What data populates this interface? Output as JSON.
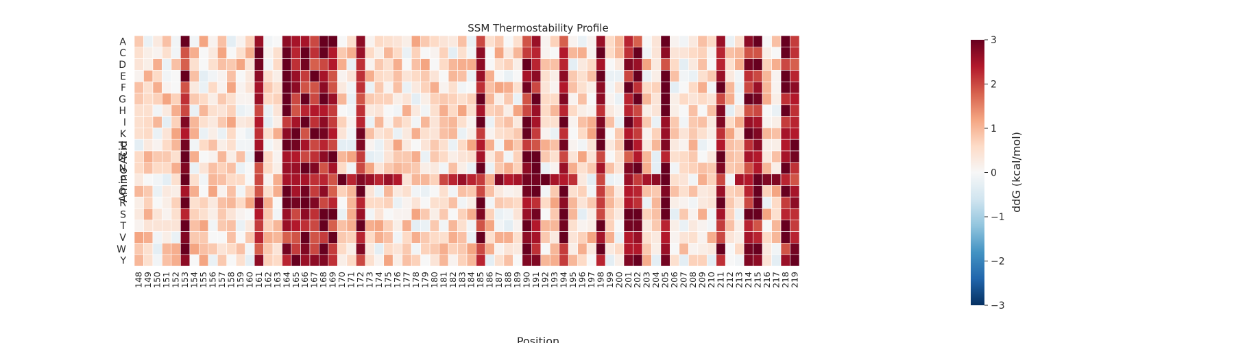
{
  "chart_data": {
    "type": "heatmap",
    "title": "SSM Thermostability Profile",
    "xlabel": "Position",
    "ylabel": "Amino Acid",
    "x_start": 148,
    "x_end": 219,
    "y_labels": [
      "A",
      "C",
      "D",
      "E",
      "F",
      "G",
      "H",
      "I",
      "K",
      "L",
      "M",
      "N",
      "P",
      "Q",
      "R",
      "S",
      "T",
      "V",
      "W",
      "Y"
    ],
    "colorbar": {
      "label": "ddG (kcal/mol)",
      "vmin": -3,
      "vmax": 3,
      "ticks": [
        3,
        2,
        1,
        0,
        -1,
        -2,
        -3
      ],
      "tick_labels": [
        "3",
        "2",
        "1",
        "0",
        "−1",
        "−2",
        "−3"
      ],
      "colormap": "RdBu_r",
      "stops": [
        "#053061",
        "#2166ac",
        "#4393c3",
        "#92c5de",
        "#d1e5f0",
        "#f7f7f7",
        "#fddbc7",
        "#f4a582",
        "#d6604d",
        "#b2182b",
        "#67001f"
      ]
    },
    "grid_line_color": "#ffffff",
    "high_positions": [
      153,
      161,
      164,
      165,
      166,
      167,
      168,
      169,
      172,
      185,
      190,
      191,
      194,
      198,
      201,
      202,
      205,
      211,
      214,
      215,
      218,
      219
    ],
    "proline_row_positions": [
      166,
      167,
      168,
      169,
      170,
      171,
      172,
      173,
      174,
      175,
      176,
      181,
      182,
      183,
      184,
      185,
      187,
      188,
      189,
      190,
      191,
      192,
      193,
      194,
      195,
      198,
      201,
      202,
      203,
      204,
      205,
      213,
      214,
      215,
      216,
      217,
      218
    ]
  }
}
